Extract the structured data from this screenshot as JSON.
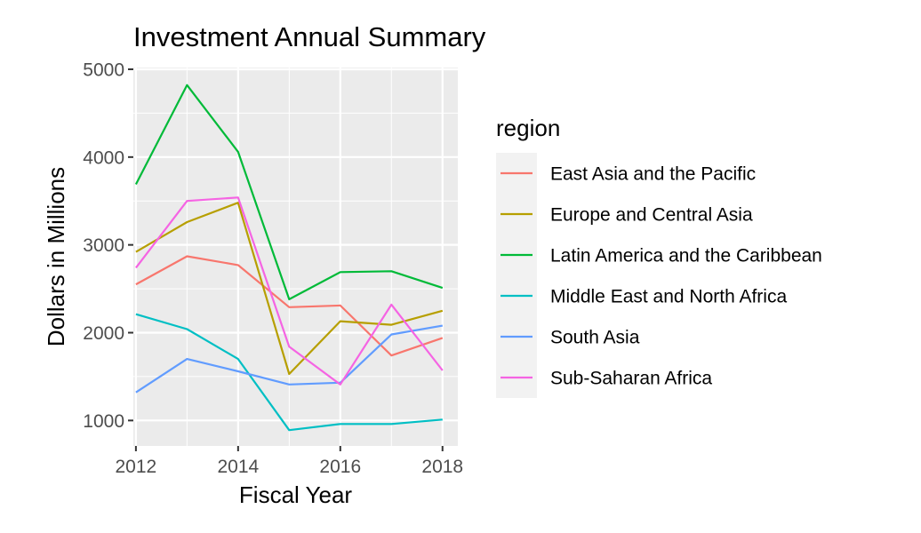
{
  "chart_data": {
    "type": "line",
    "title": "Investment Annual Summary",
    "xlabel": "Fiscal Year",
    "ylabel": "Dollars in Millions",
    "x": [
      2012,
      2013,
      2014,
      2015,
      2016,
      2017,
      2018
    ],
    "xticks": [
      2012,
      2014,
      2016,
      2018
    ],
    "yticks": [
      1000,
      2000,
      3000,
      4000,
      5000
    ],
    "xlim": [
      2011.95,
      2018.3
    ],
    "ylim": [
      710,
      5020
    ],
    "grid": true,
    "legend": {
      "title": "region",
      "position": "right"
    },
    "series": [
      {
        "name": "East Asia and the Pacific",
        "color": "#F8766D",
        "values": [
          2550,
          2870,
          2770,
          2290,
          2310,
          1740,
          1940
        ]
      },
      {
        "name": "Europe and Central Asia",
        "color": "#B79F00",
        "values": [
          2920,
          3260,
          3480,
          1530,
          2130,
          2090,
          2250
        ]
      },
      {
        "name": "Latin America and the Caribbean",
        "color": "#00BA38",
        "values": [
          3690,
          4820,
          4060,
          2380,
          2690,
          2700,
          2510
        ]
      },
      {
        "name": "Middle East and North Africa",
        "color": "#00BFC4",
        "values": [
          2210,
          2040,
          1700,
          890,
          960,
          960,
          1010
        ]
      },
      {
        "name": "South Asia",
        "color": "#619CFF",
        "values": [
          1320,
          1700,
          1560,
          1410,
          1430,
          1980,
          2080
        ]
      },
      {
        "name": "Sub-Saharan Africa",
        "color": "#F564E3",
        "values": [
          2740,
          3500,
          3540,
          1840,
          1410,
          2320,
          1570
        ]
      }
    ]
  }
}
